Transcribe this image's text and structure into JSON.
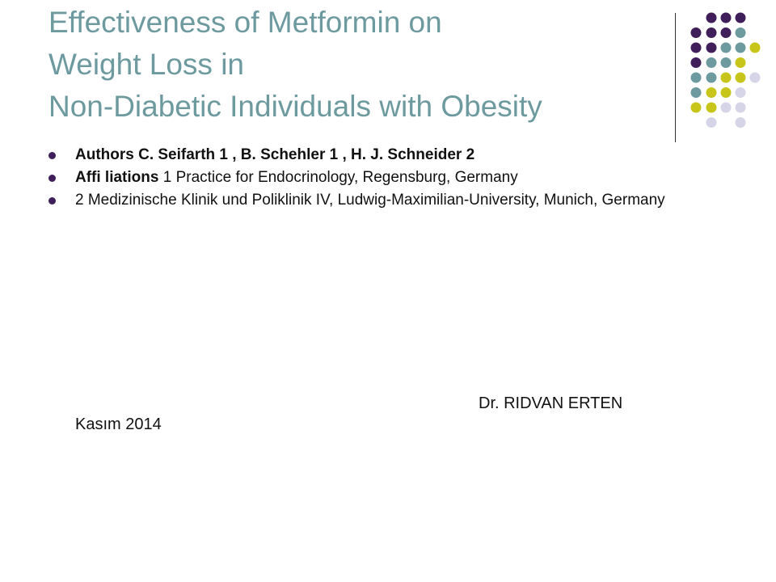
{
  "colors": {
    "title": "#6c9a9f",
    "purple": "#3f1e5a",
    "teal": "#6c9a9f",
    "yellow": "#c7c41a",
    "lavender": "#d6d5e8",
    "text": "#111111"
  },
  "slide": {
    "title_lines": [
      "Effectiveness of Metformin on",
      "Weight Loss in",
      "Non-Diabetic Individuals with Obesity"
    ],
    "authors": {
      "label": "Authors",
      "text": " C. Seifarth 1 , B. Schehler 1 , H. J. Schneider 2"
    },
    "affiliations": {
      "label": "Affi liations",
      "text": " 1 Practice for Endocrinology, Regensburg, Germany"
    },
    "affiliation_2": "2 Medizinische Klinik und Poliklinik IV, Ludwig-Maximilian-University, Munich, Germany",
    "presenter": "Dr. RIDVAN ERTEN",
    "date": "Kasım 2014"
  }
}
